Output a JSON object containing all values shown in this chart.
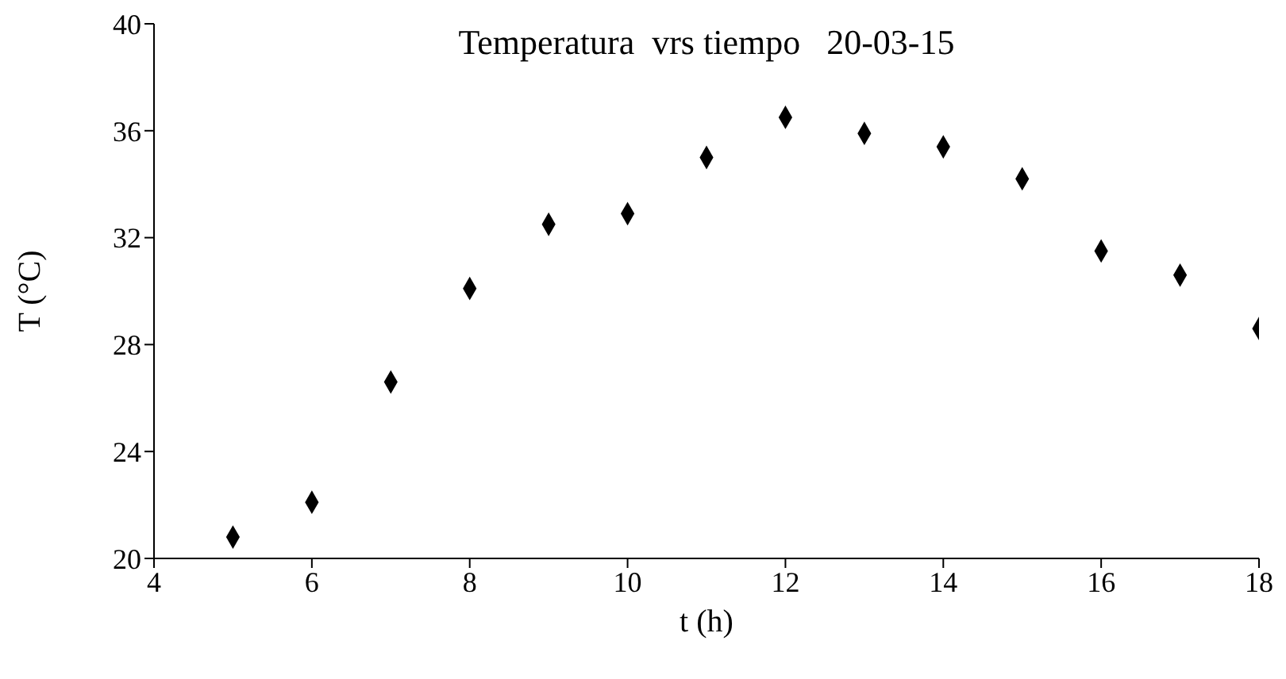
{
  "chart_data": {
    "type": "scatter",
    "title": "Temperatura  vrs tiempo   20-03-15",
    "xlabel": "t (h)",
    "ylabel": "T (°C)",
    "x": [
      5,
      6,
      7,
      8,
      9,
      10,
      11,
      12,
      13,
      14,
      15,
      16,
      17,
      18
    ],
    "series": [
      {
        "color": "#000000",
        "values": [
          20.8,
          22.1,
          26.6,
          30.1,
          32.5,
          32.9,
          35.0,
          36.5,
          35.9,
          35.4,
          34.2,
          31.5,
          30.6,
          28.6
        ]
      }
    ],
    "xlim": [
      4,
      18
    ],
    "xticks": [
      4,
      6,
      8,
      10,
      12,
      14,
      16,
      18
    ],
    "ylim": [
      20,
      40
    ],
    "yticks": [
      20,
      24,
      28,
      32,
      36,
      40
    ],
    "grid": false,
    "legend": false,
    "marker": "diamond"
  }
}
